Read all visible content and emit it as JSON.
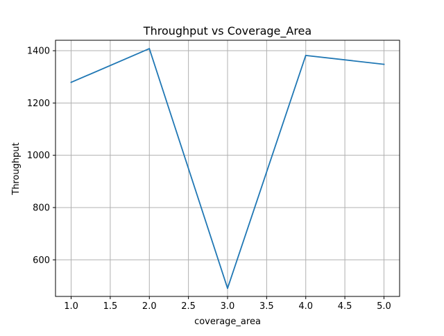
{
  "chart_data": {
    "type": "line",
    "title": "Throughput vs Coverage_Area",
    "xlabel": "coverage_area",
    "ylabel": "Throughput",
    "xlim": [
      0.8,
      5.2
    ],
    "ylim": [
      460,
      1440
    ],
    "xticks": [
      1.0,
      1.5,
      2.0,
      2.5,
      3.0,
      3.5,
      4.0,
      4.5,
      5.0
    ],
    "xtick_labels": [
      "1.0",
      "1.5",
      "2.0",
      "2.5",
      "3.0",
      "3.5",
      "4.0",
      "4.5",
      "5.0"
    ],
    "yticks": [
      600,
      800,
      1000,
      1200,
      1400
    ],
    "ytick_labels": [
      "600",
      "800",
      "1000",
      "1200",
      "1400"
    ],
    "grid": true,
    "series": [
      {
        "x": [
          1,
          2,
          3,
          4,
          5
        ],
        "y": [
          1279,
          1408,
          491,
          1382,
          1348
        ],
        "color": "#1f77b4"
      }
    ]
  }
}
